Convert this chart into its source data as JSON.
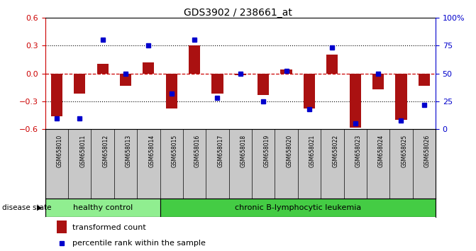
{
  "title": "GDS3902 / 238661_at",
  "samples": [
    "GSM658010",
    "GSM658011",
    "GSM658012",
    "GSM658013",
    "GSM658014",
    "GSM658015",
    "GSM658016",
    "GSM658017",
    "GSM658018",
    "GSM658019",
    "GSM658020",
    "GSM658021",
    "GSM658022",
    "GSM658023",
    "GSM658024",
    "GSM658025",
    "GSM658026"
  ],
  "transformed_count": [
    -0.46,
    -0.22,
    0.1,
    -0.13,
    0.12,
    -0.38,
    0.3,
    -0.22,
    -0.02,
    -0.23,
    0.04,
    -0.38,
    0.2,
    -0.58,
    -0.17,
    -0.5,
    -0.13
  ],
  "percentile_rank": [
    10,
    10,
    80,
    50,
    75,
    32,
    80,
    28,
    50,
    25,
    52,
    18,
    73,
    5,
    50,
    8,
    22
  ],
  "ylim_left": [
    -0.6,
    0.6
  ],
  "ylim_right": [
    0,
    100
  ],
  "yticks_left": [
    -0.6,
    -0.3,
    0.0,
    0.3,
    0.6
  ],
  "yticks_right": [
    0,
    25,
    50,
    75,
    100
  ],
  "ytick_labels_right": [
    "0",
    "25",
    "50",
    "75",
    "100%"
  ],
  "bar_color": "#AA1111",
  "dot_color": "#0000CC",
  "zero_line_color": "#CC0000",
  "grid_color": "#000000",
  "n_healthy": 5,
  "n_total": 17,
  "healthy_label": "healthy control",
  "leukemia_label": "chronic B-lymphocytic leukemia",
  "disease_state_label": "disease state",
  "legend_bar_label": "transformed count",
  "legend_dot_label": "percentile rank within the sample",
  "bg_color": "#FFFFFF",
  "plot_bg_color": "#FFFFFF",
  "healthy_bg": "#90EE90",
  "leukemia_bg": "#44CC44",
  "axis_label_color_left": "#CC0000",
  "axis_label_color_right": "#0000CC",
  "bar_width": 0.5,
  "xlabel_bg": "#C8C8C8",
  "xlabel_border": "#888888"
}
